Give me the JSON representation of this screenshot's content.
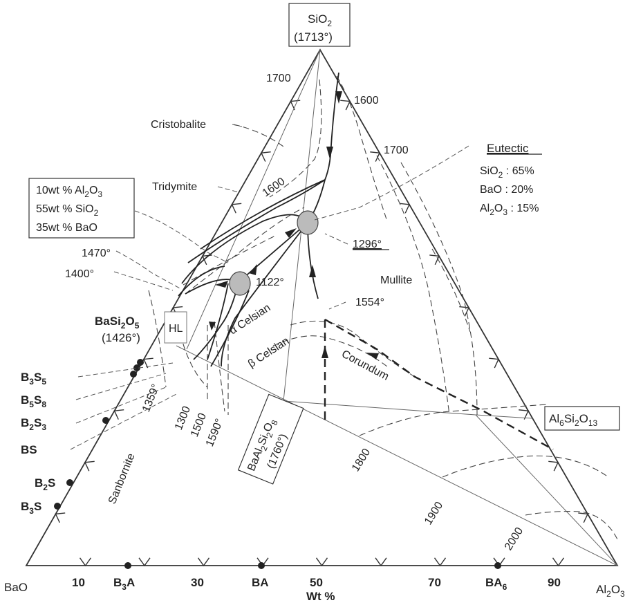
{
  "apex": {
    "formula": "SiO",
    "sub": "2",
    "temp": "(1713°)"
  },
  "corners": {
    "left": "BaO",
    "right_main": "Al",
    "right_sub": "2",
    "right_main2": "O",
    "right_sub2": "3"
  },
  "axis": {
    "title": "Wt %",
    "ticks": [
      "10",
      "30",
      "50",
      "70",
      "90"
    ],
    "compounds": [
      {
        "main": "B",
        "sub": "3",
        "rest": "A"
      },
      {
        "main": "BA",
        "sub": "",
        "rest": ""
      },
      {
        "main": "BA",
        "sub": "6",
        "rest": ""
      }
    ]
  },
  "left_compounds": [
    {
      "a": "B",
      "as": "3",
      "b": "S",
      "bs": "5"
    },
    {
      "a": "B",
      "as": "5",
      "b": "S",
      "bs": "8"
    },
    {
      "a": "B",
      "as": "2",
      "b": "S",
      "bs": "3"
    },
    {
      "a": "BS",
      "as": "",
      "b": "",
      "bs": ""
    },
    {
      "a": "B",
      "as": "2",
      "b": "S",
      "bs": ""
    },
    {
      "a": "B",
      "as": "3",
      "b": "S",
      "bs": ""
    }
  ],
  "basi2o5": {
    "l1a": "BaSi",
    "l1s": "2",
    "l1b": "O",
    "l1s2": "5",
    "l2": "(1426°)"
  },
  "composition_box": {
    "r1a": "10wt % Al",
    "r1s": "2",
    "r1b": "O",
    "r1s2": "3",
    "r2a": "55wt % SiO",
    "r2s": "2",
    "r3": "35wt % BaO"
  },
  "eutectic": {
    "title": "Eutectic",
    "l1a": "SiO",
    "l1s": "2",
    "l1b": " : 65%",
    "l2": "BaO : 20%",
    "l3a": "Al",
    "l3s": "2",
    "l3b": "O",
    "l3s2": "3",
    "l3c": " : 15%"
  },
  "phases": {
    "cristobalite": "Cristobalite",
    "tridymite": "Tridymite",
    "mullite": "Mullite",
    "alpha_celsian": "α Celsian",
    "beta_celsian": "β Celsian",
    "corundum": "Corundum",
    "sanbornite": "Sanbornite",
    "hl": "HL"
  },
  "temps": {
    "t1700a": "1700",
    "t1600a": "1600",
    "t1700b": "1700",
    "t1600b": "1600",
    "t1470": "1470°",
    "t1400": "1400°",
    "t1122": "1122°",
    "t1296": "1296°",
    "t1554": "1554°",
    "t1359": "1359°",
    "t1300": "1300",
    "t1500": "1500",
    "t1590": "1590°",
    "t1800": "1800",
    "t1900": "1900",
    "t2000": "2000"
  },
  "al6": {
    "a": "Al",
    "as": "6",
    "b": "Si",
    "bs": "2",
    "c": "O",
    "cs": "13"
  },
  "baal": {
    "a": "BaAl",
    "as": "2",
    "b": "Si",
    "bs": "2",
    "c": "O",
    "cs": "8",
    "l2": "(1760°)"
  }
}
